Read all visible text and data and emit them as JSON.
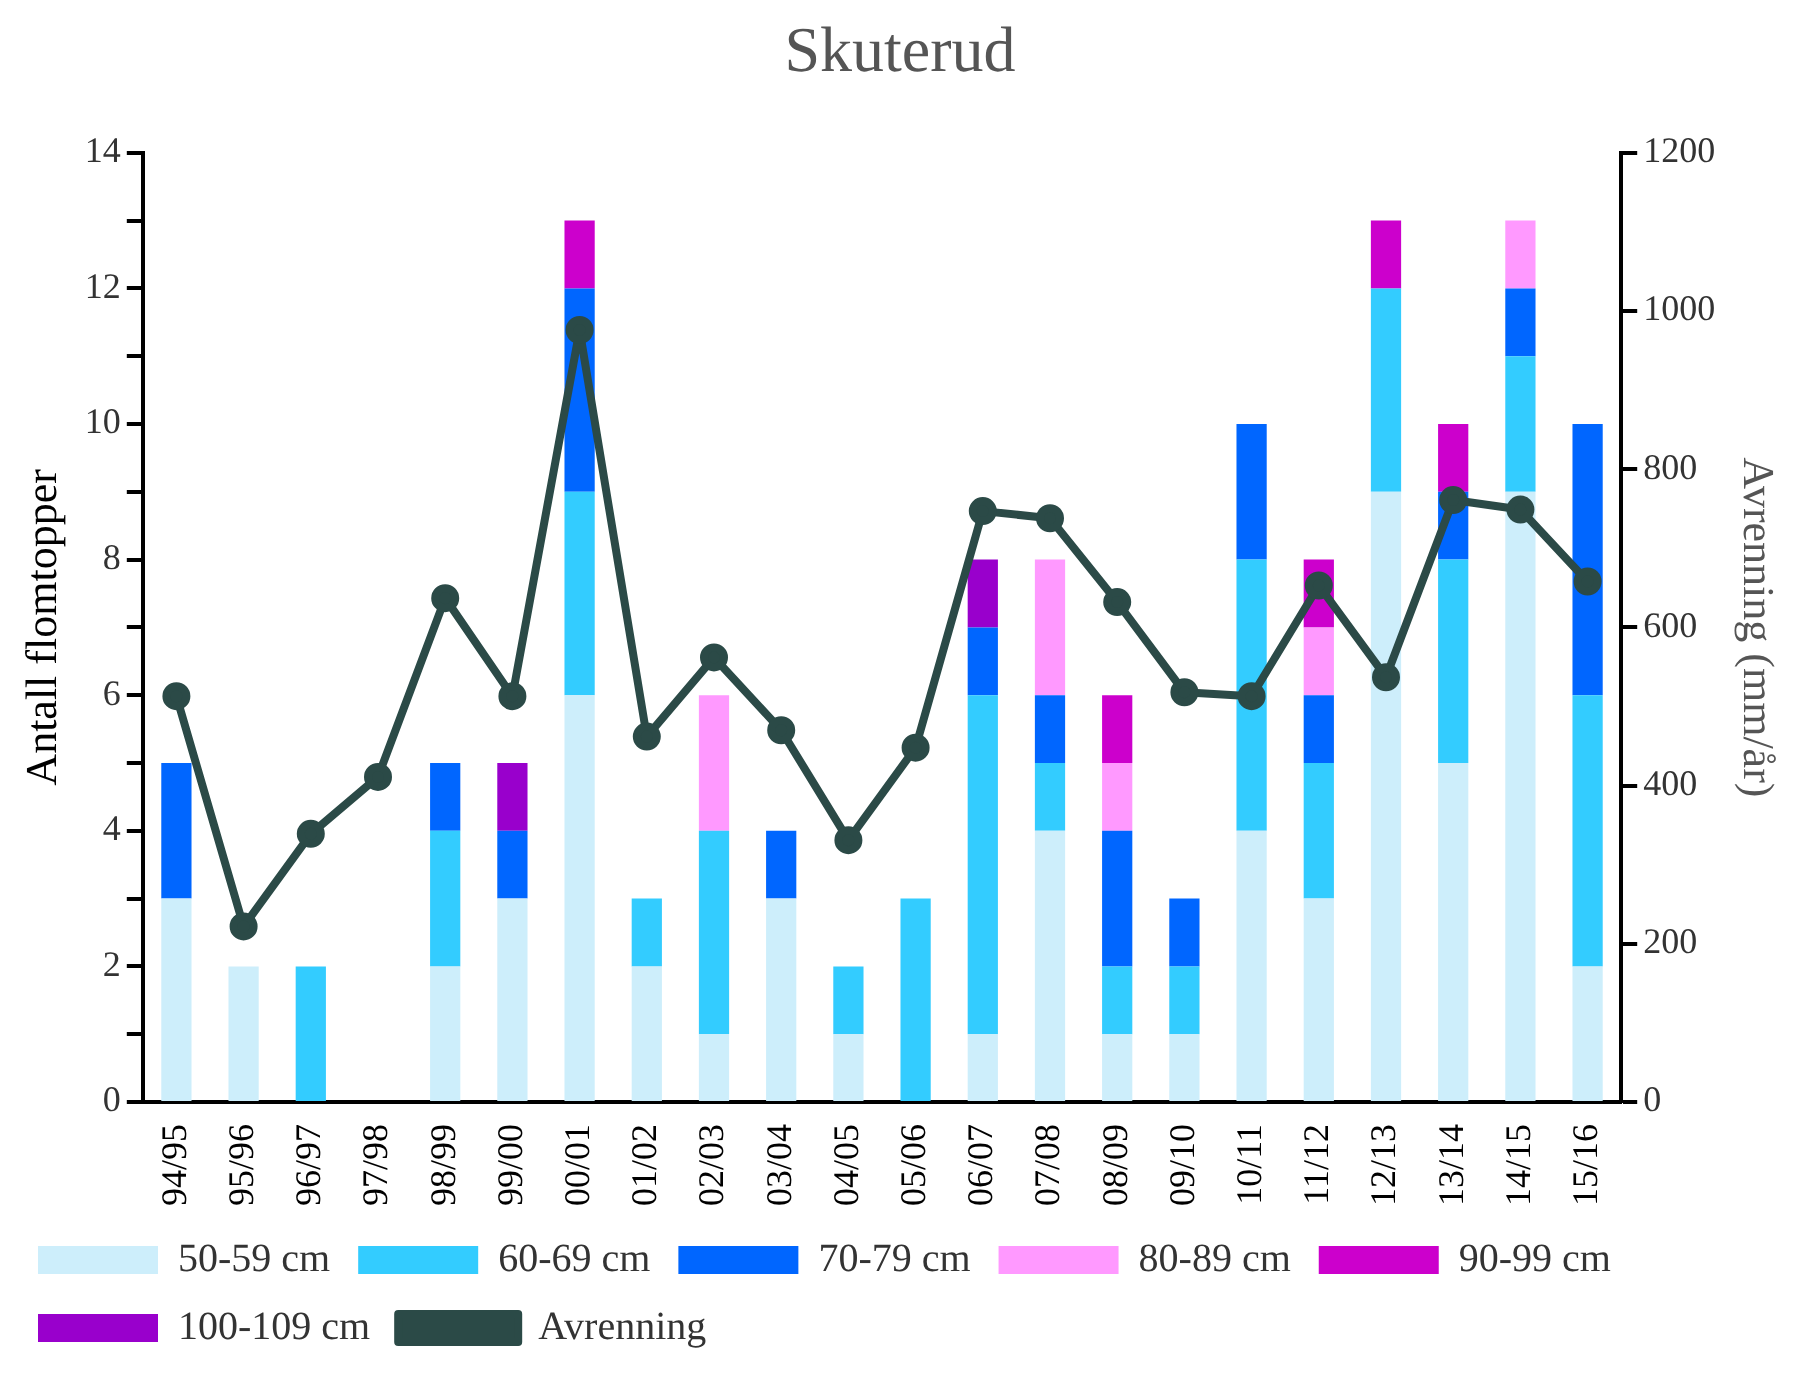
{
  "chart_data": {
    "type": "bar",
    "title": "Skuterud",
    "ylabel": "Antall flomtopper",
    "y2label": "Avrenning (mm/år)",
    "stacked": true,
    "legend": "bottom",
    "grid": false,
    "marker": "circle",
    "categories": [
      "94/95",
      "95/96",
      "96/97",
      "97/98",
      "98/99",
      "99/00",
      "00/01",
      "01/02",
      "02/03",
      "03/04",
      "04/05",
      "05/06",
      "06/07",
      "07/08",
      "08/09",
      "09/10",
      "10/11",
      "11/12",
      "12/13",
      "13/14",
      "14/15",
      "15/16"
    ],
    "ylim": [
      0,
      14
    ],
    "yticks": [
      0,
      {
        "value": 1,
        "label": null
      },
      2,
      {
        "value": 3,
        "label": null
      },
      4,
      {
        "value": 5,
        "label": null
      },
      6,
      {
        "value": 7,
        "label": null
      },
      8,
      {
        "value": 9,
        "label": null
      },
      10,
      {
        "value": 11,
        "label": null
      },
      12,
      {
        "value": 13,
        "label": null
      },
      14
    ],
    "y2lim": [
      0,
      1200
    ],
    "y2ticks": [
      0,
      200,
      400,
      600,
      800,
      1000,
      1200
    ],
    "series": [
      {
        "name": "50-59 cm",
        "color": "#cdeefb",
        "values": [
          3,
          2,
          null,
          null,
          2,
          3,
          6,
          2,
          1,
          3,
          1,
          null,
          1,
          4,
          1,
          1,
          4,
          3,
          9,
          5,
          9,
          2
        ]
      },
      {
        "name": "60-69 cm",
        "color": "#33ccff",
        "values": [
          null,
          null,
          2,
          null,
          2,
          null,
          3,
          1,
          3,
          null,
          1,
          3,
          5,
          1,
          1,
          1,
          4,
          2,
          3,
          3,
          2,
          4
        ]
      },
      {
        "name": "70-79 cm",
        "color": "#0066ff",
        "values": [
          2,
          null,
          null,
          null,
          1,
          1,
          3,
          null,
          null,
          1,
          null,
          null,
          1,
          1,
          2,
          1,
          2,
          1,
          null,
          1,
          1,
          4
        ]
      },
      {
        "name": "80-89 cm",
        "color": "#ff99ff",
        "values": [
          null,
          null,
          null,
          null,
          null,
          null,
          null,
          null,
          2,
          null,
          null,
          null,
          null,
          2,
          1,
          null,
          null,
          1,
          null,
          null,
          1,
          null
        ]
      },
      {
        "name": "90-99 cm",
        "color": "#cc00cc",
        "values": [
          null,
          null,
          null,
          null,
          null,
          null,
          1,
          null,
          null,
          null,
          null,
          null,
          null,
          null,
          1,
          null,
          null,
          1,
          1,
          1,
          null,
          null
        ]
      },
      {
        "name": "100-109 cm",
        "color": "#9900cc",
        "values": [
          null,
          null,
          null,
          null,
          null,
          1,
          null,
          null,
          null,
          null,
          null,
          null,
          1,
          null,
          null,
          null,
          null,
          null,
          null,
          null,
          null,
          null
        ]
      },
      {
        "name": "Avrenning",
        "type": "line",
        "axis": "y2",
        "color": "#2b4a47",
        "values": [
          513,
          222,
          339,
          411,
          637,
          513,
          976,
          462,
          562,
          470,
          331,
          448,
          747,
          738,
          632,
          518,
          513,
          653,
          537,
          761,
          749,
          658
        ]
      }
    ]
  }
}
